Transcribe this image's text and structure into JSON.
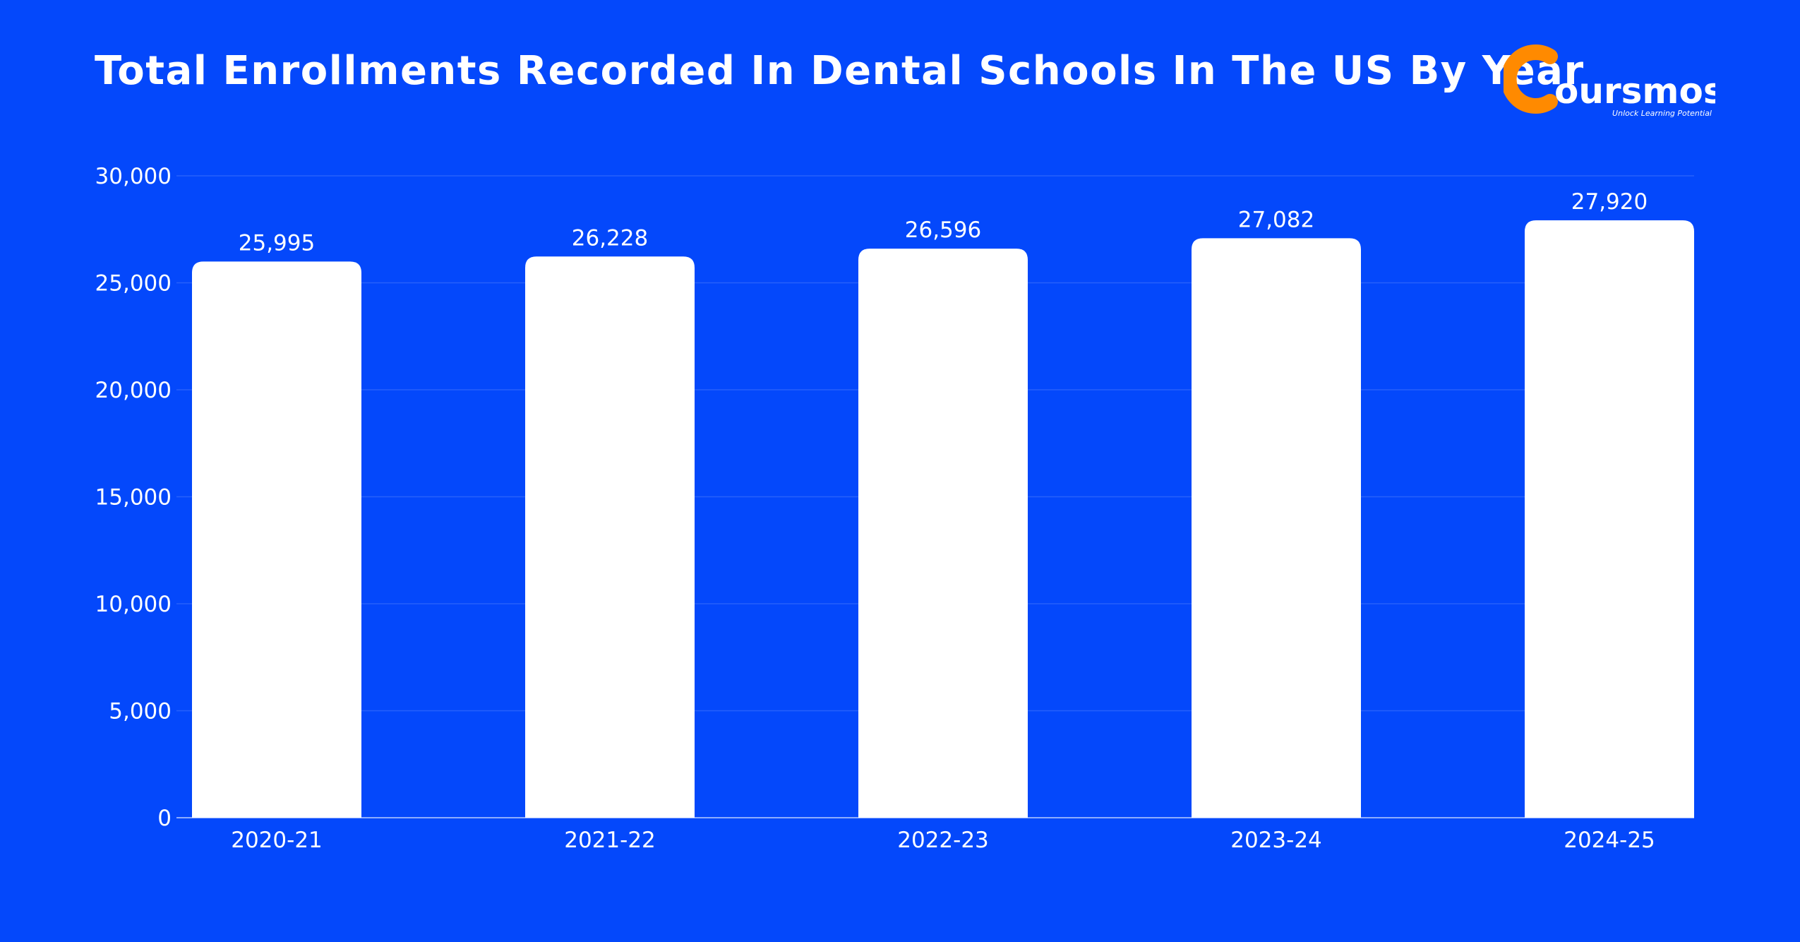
{
  "brand": {
    "name": "Coursmos",
    "initial": "C",
    "rest": "oursmos",
    "tagline": "Unlock Learning Potential",
    "colors": {
      "background": "#0448FB",
      "bar": "#FFFFFF",
      "logo_accent": "#FF8A00",
      "text": "#FFFFFF"
    }
  },
  "chart_data": {
    "type": "bar",
    "title": "Total Enrollments Recorded In Dental Schools In The US By Year",
    "xlabel": "",
    "ylabel": "",
    "categories": [
      "2020-21",
      "2021-22",
      "2022-23",
      "2023-24",
      "2024-25"
    ],
    "values": [
      25995,
      26228,
      26596,
      27082,
      27920
    ],
    "value_labels": [
      "25,995",
      "26,228",
      "26,596",
      "27,082",
      "27,920"
    ],
    "ylim": [
      0,
      30000
    ],
    "yticks": [
      0,
      5000,
      10000,
      15000,
      20000,
      25000,
      30000
    ],
    "ytick_labels": [
      "0",
      "5,000",
      "10,000",
      "15,000",
      "20,000",
      "25,000",
      "30,000"
    ],
    "grid": true,
    "legend": "none"
  }
}
